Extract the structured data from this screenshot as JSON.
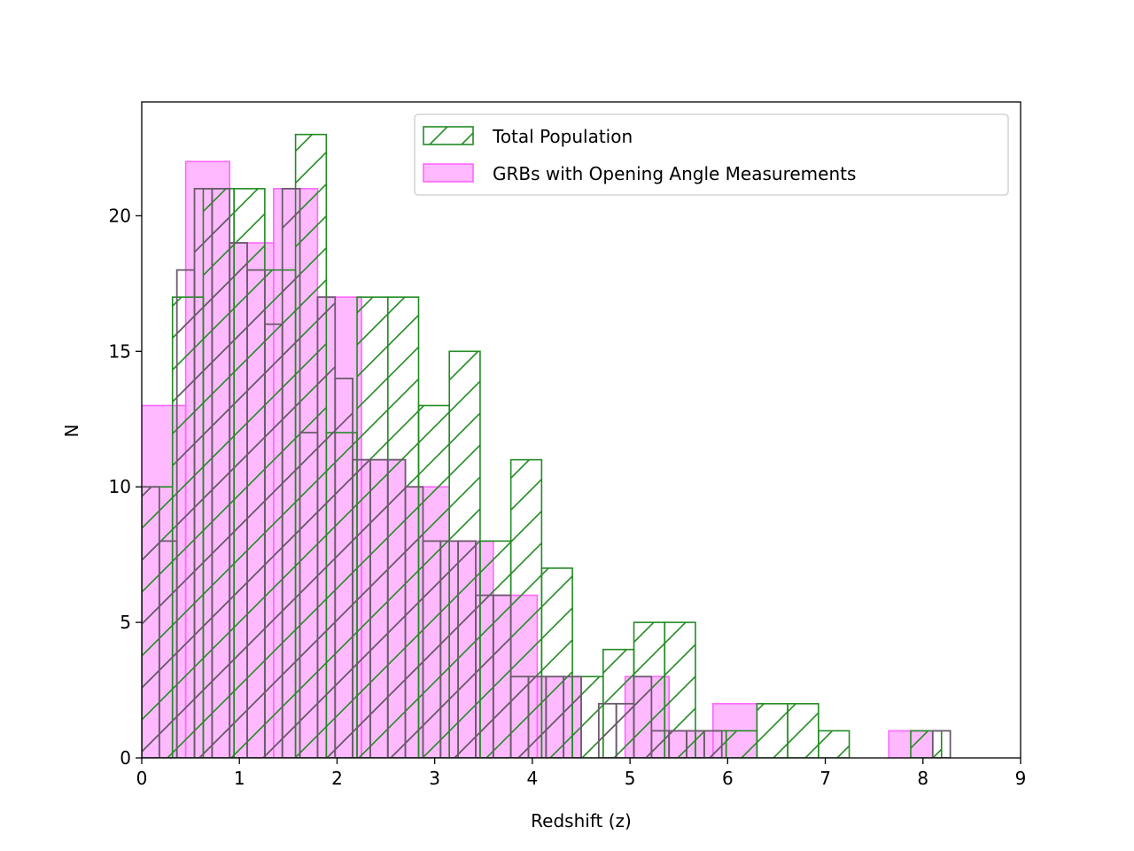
{
  "chart_data": {
    "type": "bar",
    "subtype": "histogram",
    "title": "",
    "xlabel": "Redshift (z)",
    "ylabel": "N",
    "xlim": [
      0,
      9
    ],
    "ylim": [
      0,
      24.2
    ],
    "xticks": [
      0,
      1,
      2,
      3,
      4,
      5,
      6,
      7,
      8,
      9
    ],
    "yticks": [
      0,
      5,
      10,
      15,
      20
    ],
    "grid": false,
    "legend_position": "top-right",
    "series": [
      {
        "name": "Total Population",
        "style": "outline-hatched",
        "color": "#228B22",
        "bin_edges": [
          0,
          0.315,
          0.63,
          0.945,
          1.26,
          1.575,
          1.89,
          2.205,
          2.52,
          2.835,
          3.15,
          3.465,
          3.78,
          4.095,
          4.41,
          4.725,
          5.04,
          5.355,
          5.67,
          5.985,
          6.3,
          6.615,
          6.93,
          7.245,
          7.56,
          7.875,
          8.19
        ],
        "counts": [
          10,
          17,
          21,
          21,
          18,
          23,
          12,
          17,
          17,
          13,
          15,
          8,
          11,
          7,
          3,
          4,
          5,
          5,
          1,
          1,
          2,
          2,
          1,
          0,
          0,
          1
        ]
      },
      {
        "name": "GRBs with Opening Angle Measurements",
        "style": "filled",
        "color": "#FF66FF",
        "bin_edges": [
          0,
          0.45,
          0.9,
          1.35,
          1.8,
          2.25,
          2.7,
          3.15,
          3.6,
          4.05,
          4.5,
          4.95,
          5.4,
          5.85,
          6.3,
          6.75,
          7.2,
          7.65,
          8.1
        ],
        "counts": [
          13,
          22,
          19,
          21,
          17,
          11,
          10,
          8,
          6,
          3,
          0,
          3,
          1,
          2,
          0,
          0,
          0,
          1
        ]
      }
    ],
    "overlay": {
      "name": "overlap-outline",
      "color": "#6B5B6B",
      "bin_edges": [
        0,
        0.18,
        0.36,
        0.54,
        0.72,
        0.9,
        1.08,
        1.26,
        1.44,
        1.62,
        1.8,
        1.98,
        2.16,
        2.34,
        2.52,
        2.7,
        2.88,
        3.06,
        3.24,
        3.42,
        3.6,
        3.78,
        3.96,
        4.14,
        4.32,
        4.5,
        4.68,
        4.86,
        5.04,
        5.22,
        5.4,
        5.58,
        5.76,
        5.94,
        6.12,
        6.3,
        6.48,
        6.66,
        6.84,
        7.02,
        7.2,
        7.38,
        7.56,
        7.74,
        7.92,
        8.1,
        8.28
      ],
      "counts": [
        10,
        8,
        18,
        21,
        21,
        19,
        18,
        16,
        21,
        12,
        17,
        14,
        11,
        11,
        11,
        10,
        8,
        8,
        8,
        6,
        6,
        3,
        3,
        3,
        3,
        0,
        2,
        2,
        3,
        1,
        1,
        1,
        1,
        0,
        0,
        0,
        0,
        0,
        0,
        0,
        0,
        0,
        0,
        0,
        0,
        1
      ]
    }
  }
}
